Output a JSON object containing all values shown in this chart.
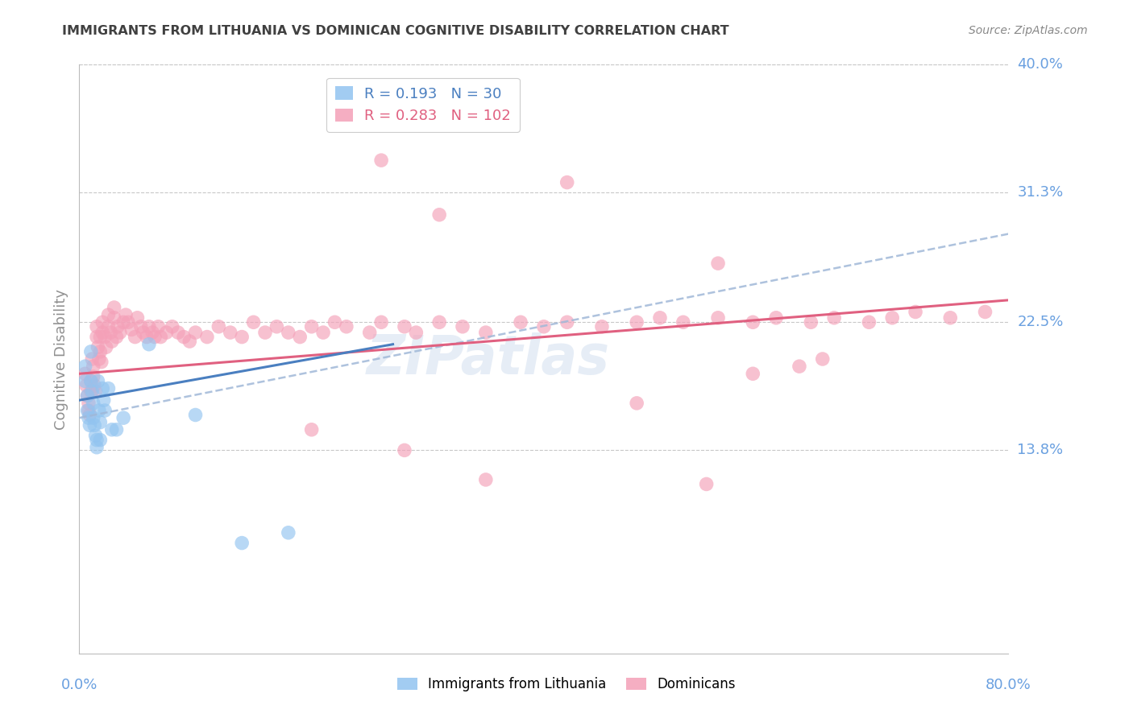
{
  "title": "IMMIGRANTS FROM LITHUANIA VS DOMINICAN COGNITIVE DISABILITY CORRELATION CHART",
  "source": "Source: ZipAtlas.com",
  "ylabel": "Cognitive Disability",
  "x_min": 0.0,
  "x_max": 0.8,
  "y_min": 0.0,
  "y_max": 0.4,
  "y_ticks": [
    0.138,
    0.225,
    0.313,
    0.4
  ],
  "y_tick_labels": [
    "13.8%",
    "22.5%",
    "31.3%",
    "40.0%"
  ],
  "background_color": "#ffffff",
  "grid_color": "#c8c8c8",
  "watermark": "ZIPatlas",
  "blue_color": "#92c4f0",
  "pink_color": "#f4a0b8",
  "blue_line_color": "#4a7fc0",
  "pink_line_color": "#e06080",
  "dashed_line_color": "#a0b8d8",
  "title_color": "#404040",
  "axis_label_color": "#909090",
  "tick_label_color": "#6aa0e0",
  "lithuania_scatter_x": [
    0.005,
    0.005,
    0.007,
    0.007,
    0.008,
    0.009,
    0.01,
    0.01,
    0.011,
    0.012,
    0.012,
    0.013,
    0.014,
    0.015,
    0.015,
    0.016,
    0.017,
    0.018,
    0.018,
    0.02,
    0.021,
    0.022,
    0.025,
    0.028,
    0.032,
    0.038,
    0.06,
    0.1,
    0.14,
    0.18
  ],
  "lithuania_scatter_y": [
    0.195,
    0.185,
    0.175,
    0.165,
    0.16,
    0.155,
    0.205,
    0.185,
    0.178,
    0.17,
    0.16,
    0.155,
    0.148,
    0.145,
    0.14,
    0.185,
    0.165,
    0.157,
    0.145,
    0.18,
    0.172,
    0.165,
    0.18,
    0.152,
    0.152,
    0.16,
    0.21,
    0.162,
    0.075,
    0.082
  ],
  "dominican_scatter_x": [
    0.005,
    0.006,
    0.007,
    0.008,
    0.008,
    0.009,
    0.01,
    0.01,
    0.011,
    0.012,
    0.012,
    0.013,
    0.014,
    0.015,
    0.015,
    0.016,
    0.017,
    0.018,
    0.018,
    0.019,
    0.02,
    0.02,
    0.022,
    0.023,
    0.025,
    0.025,
    0.027,
    0.028,
    0.03,
    0.03,
    0.032,
    0.033,
    0.035,
    0.038,
    0.04,
    0.042,
    0.045,
    0.048,
    0.05,
    0.053,
    0.055,
    0.058,
    0.06,
    0.063,
    0.065,
    0.068,
    0.07,
    0.075,
    0.08,
    0.085,
    0.09,
    0.095,
    0.1,
    0.11,
    0.12,
    0.13,
    0.14,
    0.15,
    0.16,
    0.17,
    0.18,
    0.19,
    0.2,
    0.21,
    0.22,
    0.23,
    0.25,
    0.26,
    0.28,
    0.29,
    0.31,
    0.33,
    0.35,
    0.38,
    0.4,
    0.42,
    0.45,
    0.48,
    0.5,
    0.52,
    0.55,
    0.58,
    0.6,
    0.63,
    0.65,
    0.68,
    0.7,
    0.72,
    0.75,
    0.78,
    0.42,
    0.55,
    0.2,
    0.28,
    0.35,
    0.48,
    0.54,
    0.58,
    0.62,
    0.64,
    0.26,
    0.31
  ],
  "dominican_scatter_y": [
    0.19,
    0.182,
    0.175,
    0.17,
    0.165,
    0.162,
    0.185,
    0.178,
    0.2,
    0.195,
    0.188,
    0.182,
    0.178,
    0.222,
    0.215,
    0.208,
    0.2,
    0.215,
    0.205,
    0.198,
    0.225,
    0.218,
    0.215,
    0.208,
    0.23,
    0.222,
    0.218,
    0.212,
    0.235,
    0.228,
    0.215,
    0.222,
    0.218,
    0.225,
    0.23,
    0.225,
    0.22,
    0.215,
    0.228,
    0.222,
    0.218,
    0.215,
    0.222,
    0.218,
    0.215,
    0.222,
    0.215,
    0.218,
    0.222,
    0.218,
    0.215,
    0.212,
    0.218,
    0.215,
    0.222,
    0.218,
    0.215,
    0.225,
    0.218,
    0.222,
    0.218,
    0.215,
    0.222,
    0.218,
    0.225,
    0.222,
    0.218,
    0.225,
    0.222,
    0.218,
    0.225,
    0.222,
    0.218,
    0.225,
    0.222,
    0.225,
    0.222,
    0.225,
    0.228,
    0.225,
    0.228,
    0.225,
    0.228,
    0.225,
    0.228,
    0.225,
    0.228,
    0.232,
    0.228,
    0.232,
    0.32,
    0.265,
    0.152,
    0.138,
    0.118,
    0.17,
    0.115,
    0.19,
    0.195,
    0.2,
    0.335,
    0.298
  ],
  "blue_line_x": [
    0.0,
    0.27
  ],
  "blue_line_y": [
    0.172,
    0.21
  ],
  "pink_line_x": [
    0.0,
    0.8
  ],
  "pink_line_y": [
    0.19,
    0.24
  ],
  "dashed_line_x": [
    0.0,
    0.8
  ],
  "dashed_line_y": [
    0.16,
    0.285
  ]
}
